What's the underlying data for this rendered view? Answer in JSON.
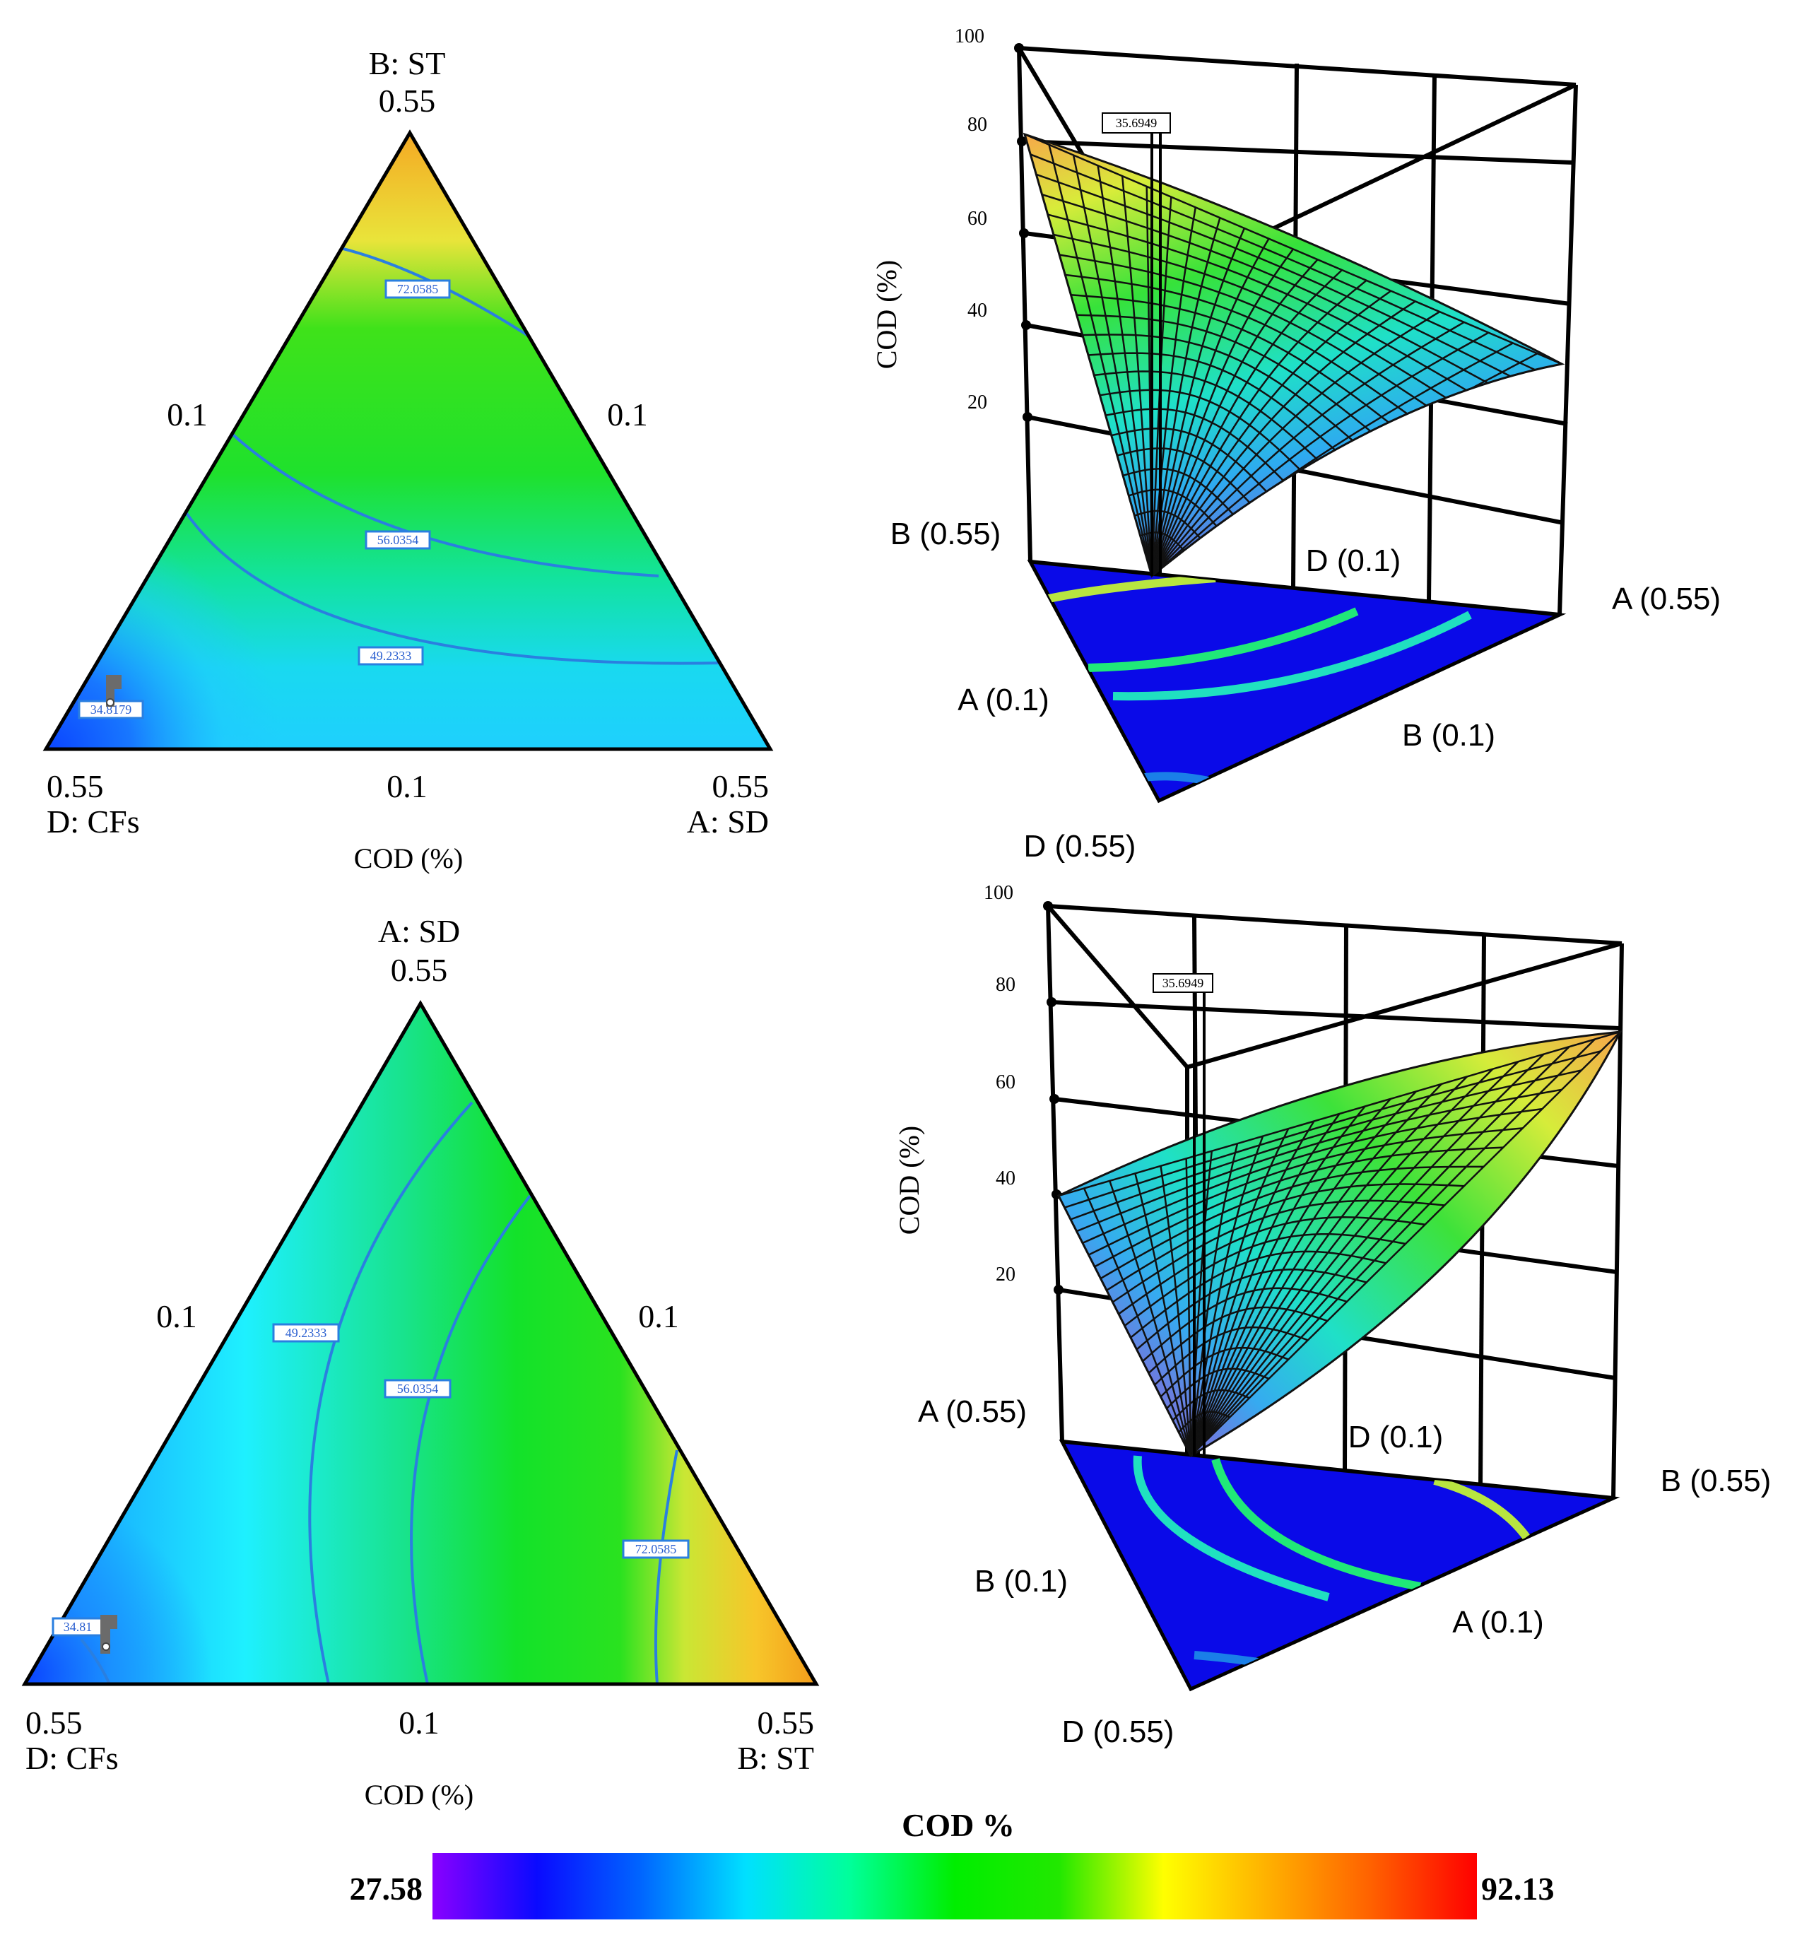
{
  "chart_data": [
    {
      "type": "contour",
      "panel": "ternary-1",
      "vertices": {
        "top": {
          "label": "B: ST",
          "value": "0.55"
        },
        "bottom_left": {
          "label": "D: CFs",
          "value": "0.55"
        },
        "bottom_right": {
          "label": "A: SD",
          "value": "0.55"
        }
      },
      "edge_labels": {
        "left": "0.1",
        "right": "0.1",
        "bottom": "0.1"
      },
      "xlabel": "COD (%)",
      "contour_labels": [
        "72.0585",
        "56.0354",
        "49.2333",
        "34.8179"
      ]
    },
    {
      "type": "surface",
      "panel": "surface-1",
      "zlabel": "COD (%)",
      "z_ticks": [
        "100",
        "80",
        "60",
        "40",
        "20"
      ],
      "zlim": [
        0,
        100
      ],
      "point_label": "35.6949",
      "axis_labels": [
        "B (0.55)",
        "D (0.1)",
        "A (0.55)",
        "A (0.1)",
        "B (0.1)",
        "D (0.55)"
      ]
    },
    {
      "type": "contour",
      "panel": "ternary-2",
      "vertices": {
        "top": {
          "label": "A: SD",
          "value": "0.55"
        },
        "bottom_left": {
          "label": "D: CFs",
          "value": "0.55"
        },
        "bottom_right": {
          "label": "B: ST",
          "value": "0.55"
        }
      },
      "edge_labels": {
        "left": "0.1",
        "right": "0.1",
        "bottom": "0.1"
      },
      "xlabel": "COD (%)",
      "contour_labels": [
        "49.2333",
        "56.0354",
        "72.0585",
        "34.81"
      ]
    },
    {
      "type": "surface",
      "panel": "surface-2",
      "zlabel": "COD (%)",
      "z_ticks": [
        "100",
        "80",
        "60",
        "40",
        "20"
      ],
      "zlim": [
        0,
        100
      ],
      "point_label": "35.6949",
      "axis_labels": [
        "A (0.55)",
        "D (0.1)",
        "B (0.55)",
        "B (0.1)",
        "A (0.1)",
        "D (0.55)"
      ]
    }
  ],
  "colorbar": {
    "title": "COD %",
    "min_label": "27.58",
    "max_label": "92.13",
    "min": 27.58,
    "max": 92.13,
    "colors": [
      "#8a00ff",
      "#0a0aff",
      "#0066ff",
      "#00e0ff",
      "#00ff9a",
      "#00ee00",
      "#22e800",
      "#ffff00",
      "#ffb000",
      "#ff6000",
      "#ff0000"
    ]
  }
}
